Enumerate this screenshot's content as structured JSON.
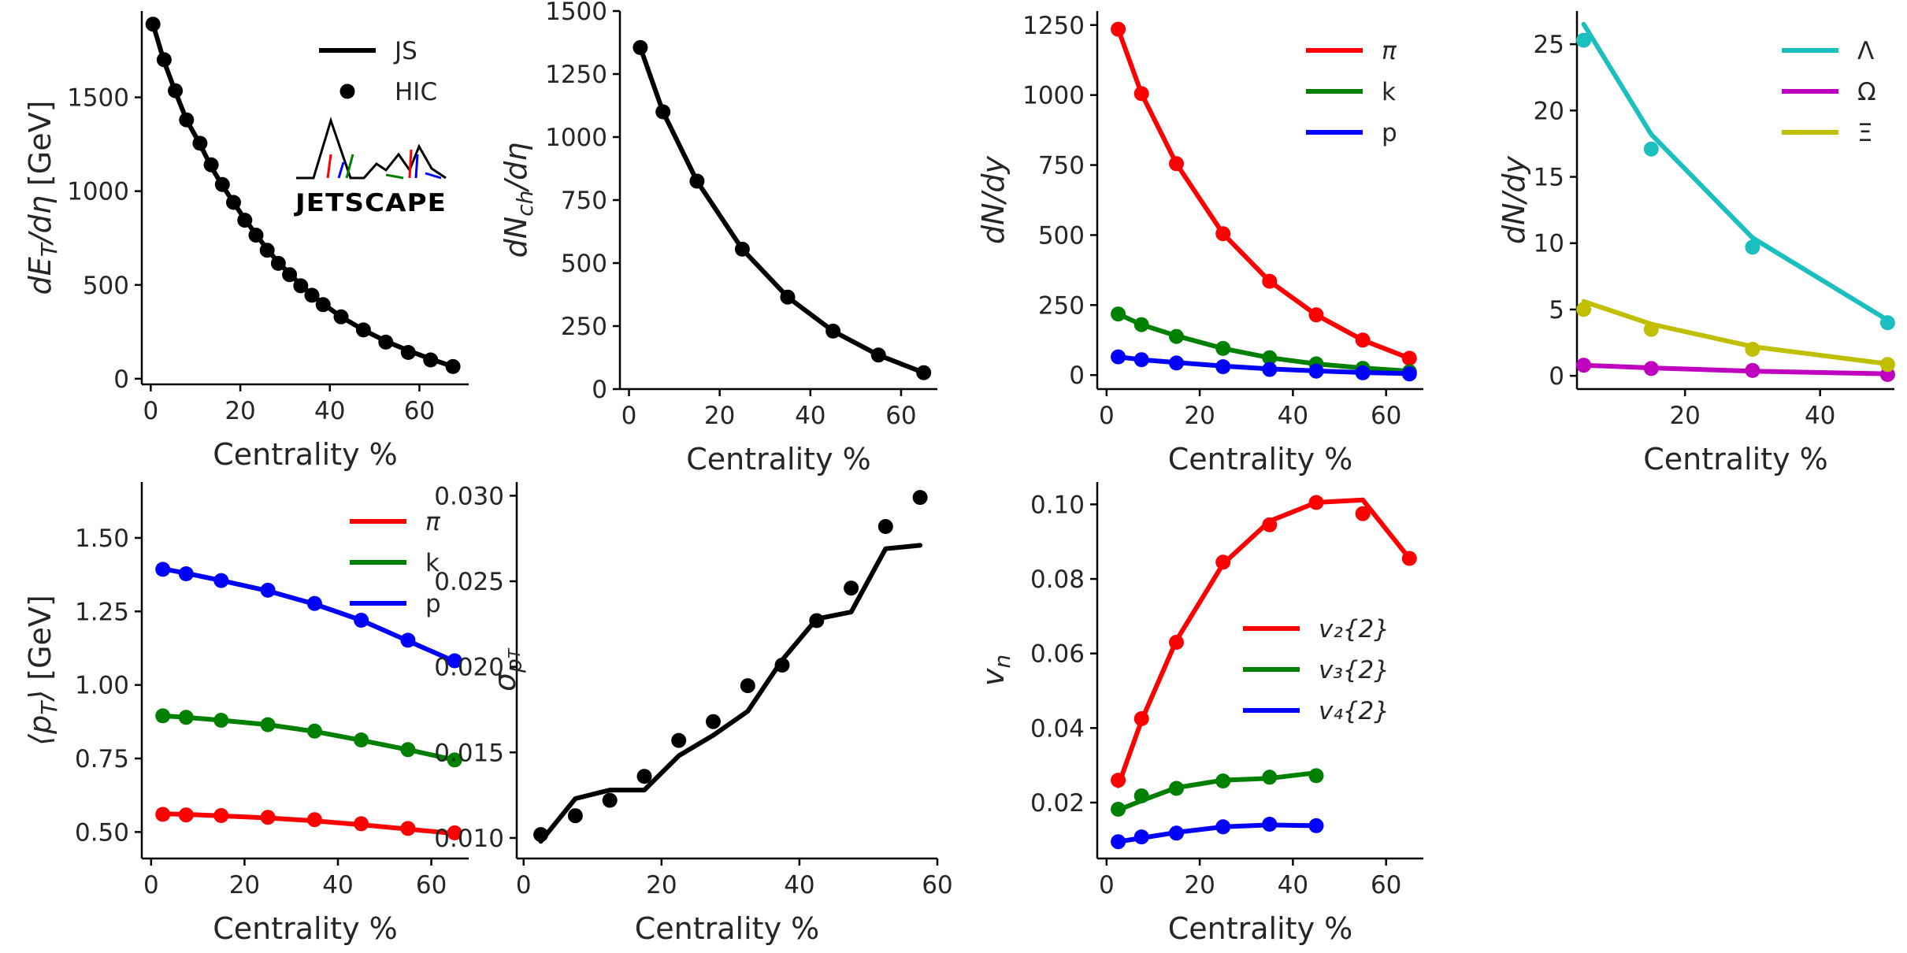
{
  "colors": {
    "black": "#000000",
    "red": "#ff0000",
    "green": "#008000",
    "blue": "#0000ff",
    "cyan": "#1bbfbf",
    "magenta": "#bf00bf",
    "olive": "#bfbf00"
  },
  "logo_text": "JETSCAPE",
  "chart_data": [
    {
      "id": "p1",
      "type": "line+scatter",
      "xlabel": "Centrality %",
      "ylabel": "dE_T/dη [GeV]",
      "xlim": [
        -2,
        71
      ],
      "ylim": [
        -30,
        1960
      ],
      "xticks": [
        0,
        20,
        40,
        60
      ],
      "yticks": [
        0,
        500,
        1000,
        1500
      ],
      "legend": [
        {
          "label": "JS",
          "kind": "line",
          "color": "#000000"
        },
        {
          "label": "HIC",
          "kind": "marker",
          "color": "#000000"
        }
      ],
      "series": [
        {
          "name": "JS",
          "color": "#000000",
          "x": [
            0.5,
            3,
            5.5,
            8,
            11,
            13.5,
            16,
            18.5,
            21,
            23.5,
            26,
            28.5,
            31,
            33.5,
            36,
            38.5,
            42.5,
            47.5,
            52.5,
            57.5,
            62.5,
            67.5
          ],
          "model": [
            1890,
            1690,
            1530,
            1380,
            1250,
            1130,
            1030,
            940,
            850,
            770,
            690,
            620,
            560,
            500,
            450,
            400,
            330,
            260,
            200,
            150,
            105,
            65
          ],
          "data": [
            1890,
            1700,
            1535,
            1380,
            1255,
            1140,
            1035,
            940,
            845,
            765,
            685,
            615,
            555,
            495,
            445,
            395,
            330,
            260,
            195,
            140,
            100,
            65
          ]
        }
      ]
    },
    {
      "id": "p2",
      "type": "line+scatter",
      "xlabel": "Centrality %",
      "ylabel": "dN_ch/dη",
      "xlim": [
        -2,
        68
      ],
      "ylim": [
        0,
        1500
      ],
      "xticks": [
        0,
        20,
        40,
        60
      ],
      "yticks": [
        0,
        250,
        500,
        750,
        1000,
        1250,
        1500
      ],
      "series": [
        {
          "name": "JS",
          "color": "#000000",
          "x": [
            2.5,
            7.5,
            15,
            25,
            35,
            45,
            55,
            65
          ],
          "model": [
            1355,
            1100,
            825,
            555,
            365,
            230,
            135,
            65
          ],
          "data": [
            1355,
            1100,
            825,
            555,
            365,
            230,
            135,
            65
          ]
        }
      ]
    },
    {
      "id": "p3",
      "type": "line+scatter",
      "xlabel": "Centrality %",
      "ylabel": "dN/dy",
      "xlim": [
        -2,
        68
      ],
      "ylim": [
        -50,
        1300
      ],
      "xticks": [
        0,
        20,
        40,
        60
      ],
      "yticks": [
        0,
        250,
        500,
        750,
        1000,
        1250
      ],
      "legend": [
        {
          "label": "π",
          "kind": "line",
          "color": "#ff0000",
          "italic": true
        },
        {
          "label": "k",
          "kind": "line",
          "color": "#008000"
        },
        {
          "label": "p",
          "kind": "line",
          "color": "#0000ff"
        }
      ],
      "series": [
        {
          "name": "π",
          "color": "#ff0000",
          "x": [
            2.5,
            7.5,
            15,
            25,
            35,
            45,
            55,
            65
          ],
          "model": [
            1235,
            1005,
            755,
            505,
            335,
            215,
            125,
            60
          ],
          "data": [
            1235,
            1005,
            755,
            505,
            335,
            215,
            125,
            60
          ]
        },
        {
          "name": "k",
          "color": "#008000",
          "x": [
            2.5,
            7.5,
            15,
            25,
            35,
            45,
            55,
            65
          ],
          "model": [
            218,
            180,
            140,
            95,
            62,
            40,
            25,
            14
          ],
          "data": [
            218,
            180,
            138,
            95,
            62,
            40,
            24,
            12
          ]
        },
        {
          "name": "p",
          "color": "#0000ff",
          "x": [
            2.5,
            7.5,
            15,
            25,
            35,
            45,
            55,
            65
          ],
          "model": [
            65,
            55,
            45,
            32,
            22,
            15,
            9,
            5
          ],
          "data": [
            65,
            55,
            43,
            30,
            20,
            14,
            8,
            4
          ]
        }
      ]
    },
    {
      "id": "p4",
      "type": "line+scatter",
      "xlabel": "Centrality %",
      "ylabel": "dN/dy",
      "xlim": [
        4,
        51
      ],
      "ylim": [
        -1,
        27.5
      ],
      "xticks": [
        20,
        40
      ],
      "yticks": [
        0,
        5,
        10,
        15,
        20,
        25
      ],
      "legend": [
        {
          "label": "Λ",
          "kind": "line",
          "color": "#1bbfbf"
        },
        {
          "label": "Ω",
          "kind": "line",
          "color": "#bf00bf"
        },
        {
          "label": "Ξ",
          "kind": "line",
          "color": "#bfbf00"
        }
      ],
      "series": [
        {
          "name": "Λ",
          "color": "#1bbfbf",
          "x": [
            5,
            15,
            30,
            50
          ],
          "model": [
            26.5,
            18.2,
            10.4,
            4.2
          ],
          "data": [
            25.3,
            17.1,
            9.7,
            4.0
          ]
        },
        {
          "name": "Ω",
          "color": "#bf00bf",
          "x": [
            5,
            15,
            30,
            50
          ],
          "model": [
            0.8,
            0.6,
            0.35,
            0.15
          ],
          "data": [
            0.8,
            0.55,
            0.4,
            0.1
          ]
        },
        {
          "name": "Ξ",
          "color": "#bfbf00",
          "x": [
            5,
            15,
            30,
            50
          ],
          "model": [
            5.6,
            3.9,
            2.2,
            0.9
          ],
          "data": [
            5.0,
            3.5,
            2.0,
            0.85
          ]
        }
      ]
    },
    {
      "id": "p5",
      "type": "line+scatter",
      "xlabel": "Centrality %",
      "ylabel": "⟨p_T⟩ [GeV]",
      "xlim": [
        -2,
        68
      ],
      "ylim": [
        0.41,
        1.69
      ],
      "xticks": [
        0,
        20,
        40,
        60
      ],
      "yticks": [
        0.5,
        0.75,
        1.0,
        1.25,
        1.5
      ],
      "ytick_labels": [
        "0.50",
        "0.75",
        "1.00",
        "1.25",
        "1.50"
      ],
      "legend": [
        {
          "label": "π",
          "kind": "line",
          "color": "#ff0000",
          "italic": true
        },
        {
          "label": "k",
          "kind": "line",
          "color": "#008000"
        },
        {
          "label": "p",
          "kind": "line",
          "color": "#0000ff"
        }
      ],
      "series": [
        {
          "name": "π",
          "color": "#ff0000",
          "x": [
            2.5,
            7.5,
            15,
            25,
            35,
            45,
            55,
            65
          ],
          "model": [
            0.562,
            0.56,
            0.555,
            0.548,
            0.538,
            0.525,
            0.51,
            0.495
          ],
          "data": [
            0.56,
            0.558,
            0.556,
            0.55,
            0.542,
            0.528,
            0.512,
            0.497
          ]
        },
        {
          "name": "k",
          "color": "#008000",
          "x": [
            2.5,
            7.5,
            15,
            25,
            35,
            45,
            55,
            65
          ],
          "model": [
            0.895,
            0.89,
            0.88,
            0.865,
            0.842,
            0.812,
            0.78,
            0.745
          ],
          "data": [
            0.895,
            0.89,
            0.88,
            0.865,
            0.843,
            0.813,
            0.78,
            0.745
          ]
        },
        {
          "name": "p",
          "color": "#0000ff",
          "x": [
            2.5,
            7.5,
            15,
            25,
            35,
            45,
            55,
            65
          ],
          "model": [
            1.395,
            1.38,
            1.355,
            1.32,
            1.275,
            1.22,
            1.15,
            1.08
          ],
          "data": [
            1.393,
            1.378,
            1.355,
            1.322,
            1.277,
            1.22,
            1.152,
            1.082
          ]
        }
      ]
    },
    {
      "id": "p6",
      "type": "line+scatter",
      "xlabel": "Centrality %",
      "ylabel": "σ_pT",
      "xlim": [
        -1,
        60
      ],
      "ylim": [
        0.0088,
        0.0308
      ],
      "xticks": [
        0,
        20,
        40,
        60
      ],
      "yticks": [
        0.01,
        0.015,
        0.02,
        0.025,
        0.03
      ],
      "ytick_labels": [
        "0.010",
        "0.015",
        "0.020",
        "0.025",
        "0.030"
      ],
      "series": [
        {
          "name": "JS",
          "color": "#000000",
          "x": [
            2.5,
            7.5,
            12.5,
            17.5,
            22.5,
            27.5,
            32.5,
            37.5,
            42.5,
            47.5,
            52.5,
            57.5
          ],
          "model": [
            0.0098,
            0.0123,
            0.0128,
            0.0128,
            0.0148,
            0.016,
            0.0174,
            0.0204,
            0.0228,
            0.0232,
            0.0269,
            0.0271
          ],
          "data": [
            0.0102,
            0.0113,
            0.0122,
            0.0136,
            0.0157,
            0.0168,
            0.0189,
            0.0201,
            0.0227,
            0.0246,
            0.0282,
            0.0299
          ]
        }
      ]
    },
    {
      "id": "p7",
      "type": "line+scatter",
      "xlabel": "Centrality %",
      "ylabel": "v_n",
      "xlim": [
        -2,
        68
      ],
      "ylim": [
        0.005,
        0.106
      ],
      "xticks": [
        0,
        20,
        40,
        60
      ],
      "yticks": [
        0.02,
        0.04,
        0.06,
        0.08,
        0.1
      ],
      "ytick_labels": [
        "0.02",
        "0.04",
        "0.06",
        "0.08",
        "0.10"
      ],
      "legend": [
        {
          "label": "v₂{2}",
          "kind": "line",
          "color": "#ff0000",
          "italic": true
        },
        {
          "label": "v₃{2}",
          "kind": "line",
          "color": "#008000",
          "italic": true
        },
        {
          "label": "v₄{2}",
          "kind": "line",
          "color": "#0000ff",
          "italic": true
        }
      ],
      "series": [
        {
          "name": "v₂{2}",
          "color": "#ff0000",
          "x": [
            2.5,
            7.5,
            15,
            25,
            35,
            45,
            55,
            65
          ],
          "model": [
            0.0245,
            0.042,
            0.0635,
            0.084,
            0.0955,
            0.1005,
            0.1012,
            0.0855
          ],
          "data": [
            0.026,
            0.0425,
            0.063,
            0.0845,
            0.0945,
            0.1005,
            0.0975,
            0.0855
          ]
        },
        {
          "name": "v₃{2}",
          "color": "#008000",
          "x": [
            2.5,
            7.5,
            15,
            25,
            35,
            45
          ],
          "model": [
            0.018,
            0.0205,
            0.024,
            0.026,
            0.0265,
            0.028
          ],
          "data": [
            0.0182,
            0.0218,
            0.0238,
            0.0258,
            0.0268,
            0.0272
          ]
        },
        {
          "name": "v₄{2}",
          "color": "#0000ff",
          "x": [
            2.5,
            7.5,
            15,
            25,
            35,
            45
          ],
          "model": [
            0.0095,
            0.0105,
            0.012,
            0.0135,
            0.014,
            0.0138
          ],
          "data": [
            0.0095,
            0.0108,
            0.0118,
            0.0135,
            0.0142,
            0.0138
          ]
        }
      ]
    }
  ]
}
